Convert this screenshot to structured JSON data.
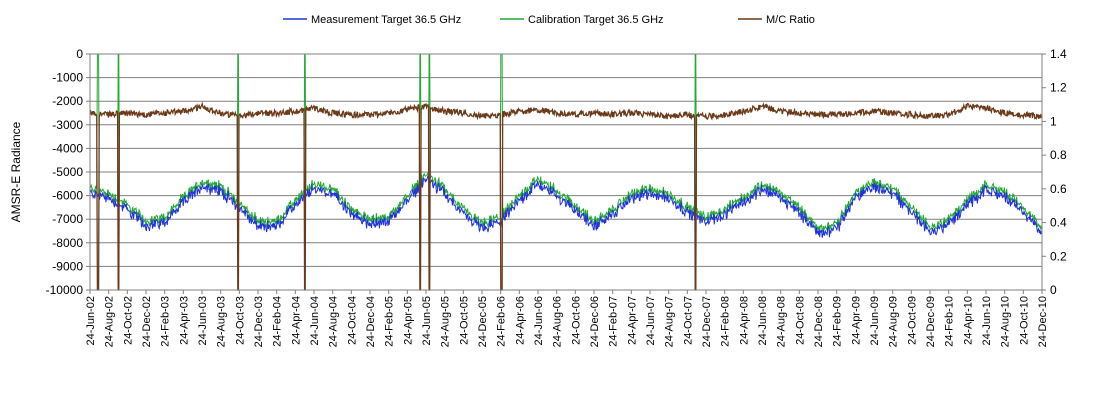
{
  "chart_data": {
    "type": "line",
    "ylabel": "AMSR-E Radiance",
    "ylim": [
      -10000,
      0
    ],
    "y2lim": [
      0,
      1.4
    ],
    "y_ticks": [
      "0",
      "-1000",
      "-2000",
      "-3000",
      "-4000",
      "-5000",
      "-6000",
      "-7000",
      "-8000",
      "-9000",
      "-10000"
    ],
    "y2_ticks": [
      "1.4",
      "1.2",
      "1",
      "0.8",
      "0.6",
      "0.4",
      "0.2",
      "0"
    ],
    "x_ticks": [
      "24-Jun-02",
      "24-Aug-02",
      "24-Oct-02",
      "24-Dec-02",
      "24-Feb-03",
      "24-Apr-03",
      "24-Jun-03",
      "24-Aug-03",
      "24-Oct-03",
      "24-Dec-03",
      "24-Feb-04",
      "24-Apr-04",
      "24-Jun-04",
      "24-Aug-04",
      "24-Oct-04",
      "24-Dec-04",
      "24-Feb-05",
      "24-Apr-05",
      "24-Jun-05",
      "24-Aug-05",
      "24-Oct-05",
      "24-Dec-05",
      "24-Feb-06",
      "24-Apr-06",
      "24-Jun-06",
      "24-Aug-06",
      "24-Oct-06",
      "24-Dec-06",
      "24-Feb-07",
      "24-Apr-07",
      "24-Jun-07",
      "24-Aug-07",
      "24-Oct-07",
      "24-Dec-07",
      "24-Feb-08",
      "24-Apr-08",
      "24-Jun-08",
      "24-Aug-08",
      "24-Oct-08",
      "24-Dec-08",
      "24-Feb-09",
      "24-Apr-09",
      "24-Jun-09",
      "24-Aug-09",
      "24-Oct-09",
      "24-Dec-09",
      "24-Feb-10",
      "24-Apr-10",
      "24-Jun-10",
      "24-Aug-10",
      "24-Oct-10",
      "24-Dec-10"
    ],
    "grid": "horizontal",
    "legend_position": "top",
    "colors": {
      "measurement": "#2233dd",
      "calibration": "#22aa33",
      "ratio": "#6b3a1a"
    },
    "series": [
      {
        "name": "Measurement Target 36.5 GHz",
        "axis": "left",
        "x": [
          "2002-06-24",
          "2002-08-24",
          "2002-10-24",
          "2002-12-24",
          "2003-02-24",
          "2003-04-24",
          "2003-06-24",
          "2003-08-24",
          "2003-10-24",
          "2003-12-24",
          "2004-02-24",
          "2004-04-24",
          "2004-06-24",
          "2004-08-24",
          "2004-10-24",
          "2004-12-24",
          "2005-02-24",
          "2005-04-24",
          "2005-06-24",
          "2005-08-24",
          "2005-10-24",
          "2005-12-24",
          "2006-02-24",
          "2006-04-24",
          "2006-06-24",
          "2006-08-24",
          "2006-10-24",
          "2006-12-24",
          "2007-02-24",
          "2007-04-24",
          "2007-06-24",
          "2007-08-24",
          "2007-10-24",
          "2007-12-24",
          "2008-02-24",
          "2008-04-24",
          "2008-06-24",
          "2008-08-24",
          "2008-10-24",
          "2008-12-24",
          "2009-02-24",
          "2009-04-24",
          "2009-06-24",
          "2009-08-24",
          "2009-10-24",
          "2009-12-24",
          "2010-02-24",
          "2010-04-24",
          "2010-06-24",
          "2010-08-24",
          "2010-10-24",
          "2010-12-24"
        ],
        "values": [
          -5900,
          -6100,
          -6600,
          -7300,
          -7100,
          -6300,
          -5600,
          -5800,
          -6500,
          -7300,
          -7300,
          -6400,
          -5700,
          -5900,
          -6800,
          -7200,
          -7100,
          -6200,
          -5300,
          -5900,
          -6800,
          -7400,
          -7100,
          -6200,
          -5500,
          -6000,
          -6600,
          -7300,
          -6800,
          -6100,
          -5900,
          -6100,
          -6700,
          -7100,
          -6800,
          -6300,
          -5700,
          -6100,
          -6700,
          -7600,
          -7400,
          -6100,
          -5600,
          -5900,
          -6700,
          -7500,
          -7200,
          -6400,
          -5800,
          -6000,
          -6700,
          -7600
        ]
      },
      {
        "name": "Calibration Target 36.5 GHz",
        "axis": "left",
        "x": [
          "2002-06-24",
          "2002-08-24",
          "2002-10-24",
          "2002-12-24",
          "2003-02-24",
          "2003-04-24",
          "2003-06-24",
          "2003-08-24",
          "2003-10-24",
          "2003-12-24",
          "2004-02-24",
          "2004-04-24",
          "2004-06-24",
          "2004-08-24",
          "2004-10-24",
          "2004-12-24",
          "2005-02-24",
          "2005-04-24",
          "2005-06-24",
          "2005-08-24",
          "2005-10-24",
          "2005-12-24",
          "2006-02-24",
          "2006-04-24",
          "2006-06-24",
          "2006-08-24",
          "2006-10-24",
          "2006-12-24",
          "2007-02-24",
          "2007-04-24",
          "2007-06-24",
          "2007-08-24",
          "2007-10-24",
          "2007-12-24",
          "2008-02-24",
          "2008-04-24",
          "2008-06-24",
          "2008-08-24",
          "2008-10-24",
          "2008-12-24",
          "2009-02-24",
          "2009-04-24",
          "2009-06-24",
          "2009-08-24",
          "2009-10-24",
          "2009-12-24",
          "2010-02-24",
          "2010-04-24",
          "2010-06-24",
          "2010-08-24",
          "2010-10-24",
          "2010-12-24"
        ],
        "values": [
          -5700,
          -5900,
          -6400,
          -7100,
          -6900,
          -6100,
          -5400,
          -5600,
          -6300,
          -7100,
          -7100,
          -6200,
          -5500,
          -5700,
          -6600,
          -7000,
          -6900,
          -6000,
          -5100,
          -5700,
          -6600,
          -7200,
          -6900,
          -6000,
          -5300,
          -5800,
          -6400,
          -7100,
          -6600,
          -5900,
          -5700,
          -5900,
          -6500,
          -6900,
          -6600,
          -6100,
          -5500,
          -5900,
          -6500,
          -7400,
          -7200,
          -5900,
          -5400,
          -5700,
          -6500,
          -7300,
          -7000,
          -6200,
          -5600,
          -5800,
          -6500,
          -7400
        ]
      },
      {
        "name": "M/C Ratio",
        "axis": "right",
        "x": [
          "2002-06-24",
          "2002-08-24",
          "2002-10-24",
          "2002-12-24",
          "2003-02-24",
          "2003-04-24",
          "2003-06-24",
          "2003-08-24",
          "2003-10-24",
          "2003-12-24",
          "2004-02-24",
          "2004-04-24",
          "2004-06-24",
          "2004-08-24",
          "2004-10-24",
          "2004-12-24",
          "2005-02-24",
          "2005-04-24",
          "2005-06-24",
          "2005-08-24",
          "2005-10-24",
          "2005-12-24",
          "2006-02-24",
          "2006-04-24",
          "2006-06-24",
          "2006-08-24",
          "2006-10-24",
          "2006-12-24",
          "2007-02-24",
          "2007-04-24",
          "2007-06-24",
          "2007-08-24",
          "2007-10-24",
          "2007-12-24",
          "2008-02-24",
          "2008-04-24",
          "2008-06-24",
          "2008-08-24",
          "2008-10-24",
          "2008-12-24",
          "2009-02-24",
          "2009-04-24",
          "2009-06-24",
          "2009-08-24",
          "2009-10-24",
          "2009-12-24",
          "2010-02-24",
          "2010-04-24",
          "2010-06-24",
          "2010-08-24",
          "2010-10-24",
          "2010-12-24"
        ],
        "values": [
          1.05,
          1.04,
          1.05,
          1.04,
          1.05,
          1.06,
          1.09,
          1.05,
          1.03,
          1.05,
          1.05,
          1.06,
          1.08,
          1.05,
          1.04,
          1.04,
          1.05,
          1.07,
          1.09,
          1.06,
          1.05,
          1.03,
          1.04,
          1.06,
          1.07,
          1.05,
          1.04,
          1.05,
          1.04,
          1.05,
          1.04,
          1.03,
          1.04,
          1.03,
          1.04,
          1.06,
          1.09,
          1.06,
          1.05,
          1.04,
          1.04,
          1.05,
          1.06,
          1.05,
          1.04,
          1.03,
          1.04,
          1.09,
          1.08,
          1.05,
          1.04,
          1.03
        ]
      }
    ],
    "dropouts": [
      "2002-07-20",
      "2002-09-25",
      "2003-10-20",
      "2004-05-25",
      "2005-06-05",
      "2005-07-05",
      "2006-02-25",
      "2007-11-20"
    ]
  }
}
